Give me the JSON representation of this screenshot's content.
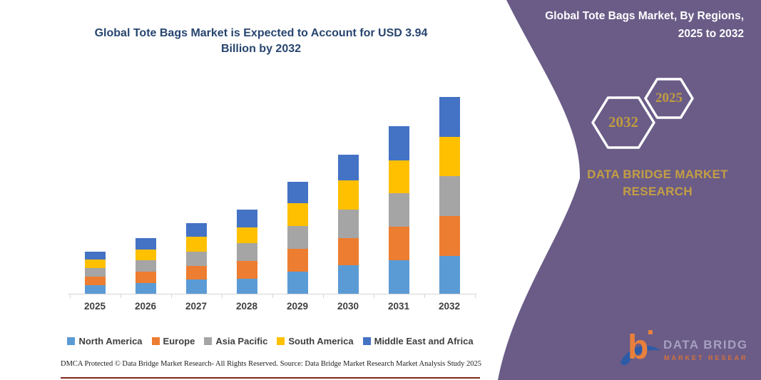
{
  "left_panel": {
    "title_line1": "Global Tote Bags Market is Expected to Account for USD 3.94",
    "title_line2": "Billion by 2032",
    "footer": {
      "dmca": "DMCA Protected © Data Bridge Market Research-  All Rights Reserved.",
      "source": "Source: Data Bridge Market Research  Market Analysis Study 2025"
    }
  },
  "chart_data": {
    "type": "bar",
    "stacked": true,
    "title": "Global Tote Bags Market is Expected to Account for USD 3.94 Billion by 2032",
    "unit": "USD Billion",
    "categories": [
      "2025",
      "2026",
      "2027",
      "2028",
      "2029",
      "2030",
      "2031",
      "2032"
    ],
    "series": [
      {
        "name": "North America",
        "color": "#5B9BD5",
        "values": [
          0.17,
          0.22,
          0.28,
          0.3,
          0.45,
          0.57,
          0.67,
          0.76
        ]
      },
      {
        "name": "Europe",
        "color": "#ED7D31",
        "values": [
          0.17,
          0.23,
          0.28,
          0.36,
          0.45,
          0.54,
          0.67,
          0.8
        ]
      },
      {
        "name": "Asia Pacific",
        "color": "#A5A5A5",
        "values": [
          0.17,
          0.22,
          0.29,
          0.35,
          0.46,
          0.57,
          0.68,
          0.8
        ]
      },
      {
        "name": "South America",
        "color": "#FFC000",
        "values": [
          0.17,
          0.22,
          0.29,
          0.32,
          0.45,
          0.59,
          0.65,
          0.78
        ]
      },
      {
        "name": "Middle East and Africa",
        "color": "#4472C4",
        "values": [
          0.17,
          0.23,
          0.28,
          0.35,
          0.44,
          0.52,
          0.69,
          0.8
        ]
      }
    ],
    "totals_by_year": [
      0.85,
      1.12,
      1.42,
      1.68,
      2.25,
      2.79,
      3.36,
      3.94
    ],
    "xlabel": "",
    "ylabel": "",
    "ylim": [
      0,
      4.2
    ],
    "y_axis_shown": false,
    "grid": false,
    "legend_position": "bottom"
  },
  "right_panel": {
    "title_line1": "Global Tote Bags Market, By Regions,",
    "title_line2": "2025 to 2032",
    "hexagon_years": {
      "large": "2032",
      "small": "2025"
    },
    "brand_line1": "DATA BRIDGE MARKET",
    "brand_line2": "RESEARCH",
    "logo": {
      "letter": "b",
      "name_top": "DATA BRIDGE",
      "name_bottom": "MARKET RESEARCH"
    },
    "panel_color": "#6A5C87",
    "accent_gold": "#C19B40"
  }
}
